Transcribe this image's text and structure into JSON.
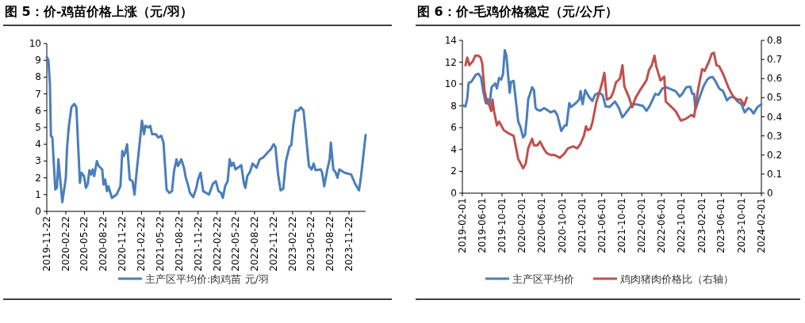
{
  "chart_data": [
    {
      "type": "line",
      "title": "图 5：价-鸡苗价格上涨（元/羽）",
      "legend": "bottom",
      "xlim": [
        "2019-11-22",
        "2024-02-10"
      ],
      "xticks": [
        "2019-11-22",
        "2020-02-22",
        "2020-05-22",
        "2020-08-22",
        "2020-11-22",
        "2021-02-22",
        "2021-05-22",
        "2021-08-22",
        "2021-11-22",
        "2022-02-22",
        "2022-05-22",
        "2022-08-22",
        "2022-11-22",
        "2023-02-22",
        "2023-05-22",
        "2023-08-22",
        "2023-11-22"
      ],
      "ylim": [
        0,
        10
      ],
      "yticks": [
        0,
        1,
        2,
        3,
        4,
        5,
        6,
        7,
        8,
        9,
        10
      ],
      "series": [
        {
          "name": "主产区平均价:肉鸡苗 元/羽",
          "color": "#4a7ebb",
          "x": [
            "2019-11-22",
            "2019-11-30",
            "2019-12-07",
            "2019-12-12",
            "2019-12-19",
            "2020-01-02",
            "2020-01-10",
            "2020-01-17",
            "2020-01-26",
            "2020-02-05",
            "2020-02-22",
            "2020-02-28",
            "2020-03-07",
            "2020-03-20",
            "2020-04-03",
            "2020-04-13",
            "2020-04-30",
            "2020-05-07",
            "2020-05-20",
            "2020-05-29",
            "2020-06-07",
            "2020-06-15",
            "2020-06-24",
            "2020-07-01",
            "2020-07-08",
            "2020-07-21",
            "2020-07-30",
            "2020-08-16",
            "2020-08-22",
            "2020-08-30",
            "2020-09-08",
            "2020-09-15",
            "2020-10-02",
            "2020-10-24",
            "2020-11-12",
            "2020-11-21",
            "2020-11-29",
            "2020-12-05",
            "2020-12-14",
            "2020-12-27",
            "2021-01-09",
            "2021-01-19",
            "2021-01-28",
            "2021-02-24",
            "2021-03-06",
            "2021-03-13",
            "2021-03-26",
            "2021-04-05",
            "2021-04-14",
            "2021-05-03",
            "2021-05-13",
            "2021-05-28",
            "2021-06-08",
            "2021-06-23",
            "2021-07-06",
            "2021-07-19",
            "2021-07-29",
            "2021-08-10",
            "2021-08-17",
            "2021-09-02",
            "2021-09-15",
            "2021-09-24",
            "2021-10-04",
            "2021-10-14",
            "2021-10-30",
            "2021-11-14",
            "2021-11-22",
            "2021-12-04",
            "2021-12-17",
            "2022-01-01",
            "2022-01-14",
            "2022-02-02",
            "2022-02-16",
            "2022-03-01",
            "2022-03-14",
            "2022-03-22",
            "2022-04-02",
            "2022-04-14",
            "2022-04-24",
            "2022-05-03",
            "2022-05-12",
            "2022-05-22",
            "2022-06-19",
            "2022-07-02",
            "2022-07-09",
            "2022-07-18",
            "2022-07-31",
            "2022-08-13",
            "2022-09-01",
            "2022-09-16",
            "2022-10-02",
            "2022-10-24",
            "2022-11-09",
            "2022-11-22",
            "2022-12-01",
            "2022-12-14",
            "2022-12-26",
            "2023-01-08",
            "2023-01-21",
            "2023-02-07",
            "2023-02-16",
            "2023-02-26",
            "2023-03-08",
            "2023-03-21",
            "2023-04-03",
            "2023-04-16",
            "2023-05-12",
            "2023-05-25",
            "2023-06-04",
            "2023-06-13",
            "2023-07-08",
            "2023-07-15",
            "2023-07-25",
            "2023-08-09",
            "2023-08-20",
            "2023-08-26",
            "2023-09-07",
            "2023-09-17",
            "2023-09-27",
            "2023-10-06",
            "2023-11-01",
            "2023-12-02",
            "2023-12-21",
            "2024-01-09",
            "2024-01-19",
            "2024-01-28",
            "2024-02-10"
          ],
          "values": [
            9.2,
            9.0,
            7.6,
            4.5,
            4.4,
            1.3,
            1.4,
            3.1,
            1.9,
            0.55,
            2.0,
            3.8,
            5.0,
            6.2,
            6.4,
            6.2,
            1.7,
            2.3,
            2.1,
            1.4,
            1.65,
            2.45,
            2.2,
            2.5,
            2.1,
            3.0,
            2.7,
            2.5,
            1.6,
            1.9,
            1.2,
            1.5,
            0.8,
            1.0,
            1.5,
            3.6,
            3.3,
            3.5,
            4.0,
            1.9,
            1.8,
            1.0,
            2.2,
            5.4,
            4.6,
            5.1,
            5.0,
            5.1,
            4.6,
            4.6,
            4.4,
            4.5,
            4.1,
            1.3,
            1.1,
            1.2,
            2.4,
            3.1,
            2.7,
            3.1,
            2.6,
            2.0,
            1.6,
            1.1,
            0.85,
            1.4,
            1.9,
            2.3,
            1.2,
            1.1,
            1.0,
            1.65,
            1.8,
            1.2,
            1.1,
            0.8,
            1.5,
            1.8,
            3.1,
            2.7,
            2.9,
            2.5,
            2.75,
            1.65,
            1.4,
            2.1,
            2.35,
            2.85,
            2.6,
            3.1,
            3.2,
            3.5,
            3.7,
            4.0,
            3.85,
            2.2,
            1.25,
            1.35,
            3.0,
            3.85,
            3.95,
            5.2,
            6.0,
            6.0,
            6.2,
            6.0,
            2.7,
            2.5,
            2.85,
            2.45,
            2.5,
            2.3,
            1.5,
            2.5,
            3.1,
            4.1,
            2.5,
            2.35,
            2.0,
            2.5,
            2.3,
            2.2,
            1.65,
            1.25,
            2.1,
            3.1,
            4.55
          ]
        }
      ]
    },
    {
      "type": "line",
      "title": "图 6：价-毛鸡价格稳定（元/公斤）",
      "legend": "bottom",
      "xlim": [
        "2019-02-01",
        "2024-02-01"
      ],
      "xticks": [
        "2019-02-01",
        "2019-06-01",
        "2019-10-01",
        "2020-02-01",
        "2020-06-01",
        "2020-10-01",
        "2021-02-01",
        "2021-06-01",
        "2021-10-01",
        "2022-02-01",
        "2022-06-01",
        "2022-10-01",
        "2023-02-01",
        "2023-06-01",
        "2023-10-01",
        "2024-02-01"
      ],
      "ylim": [
        0,
        14
      ],
      "yticks": [
        0,
        2,
        4,
        6,
        8,
        10,
        12,
        14
      ],
      "y2lim": [
        0,
        0.8
      ],
      "y2ticks": [
        0,
        0.1,
        0.2,
        0.3,
        0.4,
        0.5,
        0.6,
        0.7,
        0.8
      ],
      "series": [
        {
          "name": "主产区平均价",
          "color": "#4a7ebb",
          "x": [
            "2019-02-01",
            "2019-02-20",
            "2019-03-03",
            "2019-03-11",
            "2019-03-27",
            "2019-04-05",
            "2019-04-24",
            "2019-05-10",
            "2019-05-26",
            "2019-06-08",
            "2019-06-24",
            "2019-07-07",
            "2019-07-18",
            "2019-07-29",
            "2019-08-20",
            "2019-08-31",
            "2019-09-13",
            "2019-09-26",
            "2019-10-07",
            "2019-10-18",
            "2019-10-28",
            "2019-11-17",
            "2019-11-25",
            "2019-12-11",
            "2020-01-08",
            "2020-01-21",
            "2020-02-07",
            "2020-02-19",
            "2020-03-01",
            "2020-03-09",
            "2020-04-02",
            "2020-04-13",
            "2020-04-23",
            "2020-05-04",
            "2020-05-20",
            "2020-06-14",
            "2020-06-30",
            "2020-07-24",
            "2020-08-17",
            "2020-09-03",
            "2020-09-27",
            "2020-10-18",
            "2020-10-29",
            "2020-11-15",
            "2020-11-26",
            "2020-12-25",
            "2021-01-15",
            "2021-01-23",
            "2021-02-04",
            "2021-02-20",
            "2021-03-14",
            "2021-04-05",
            "2021-04-21",
            "2021-05-15",
            "2021-06-06",
            "2021-06-25",
            "2021-07-19",
            "2021-08-21",
            "2021-09-14",
            "2021-10-05",
            "2021-10-24",
            "2021-11-18",
            "2021-12-04",
            "2021-12-28",
            "2022-02-07",
            "2022-03-01",
            "2022-03-17",
            "2022-04-03",
            "2022-04-24",
            "2022-05-13",
            "2022-06-07",
            "2022-07-01",
            "2022-08-02",
            "2022-08-26",
            "2022-09-20",
            "2022-10-06",
            "2022-10-30",
            "2022-11-24",
            "2022-12-06",
            "2022-12-17",
            "2022-12-25",
            "2023-01-19",
            "2023-02-13",
            "2023-03-07",
            "2023-03-23",
            "2023-04-09",
            "2023-04-25",
            "2023-05-19",
            "2023-06-12",
            "2023-07-06",
            "2023-07-22",
            "2023-08-16",
            "2023-09-09",
            "2023-10-03",
            "2023-10-22",
            "2023-11-13",
            "2023-11-29",
            "2023-12-15",
            "2024-01-09",
            "2024-02-01"
          ],
          "values": [
            8.05,
            7.95,
            8.7,
            10.1,
            10.2,
            10.4,
            10.85,
            10.95,
            10.6,
            9.35,
            8.25,
            8.6,
            8.25,
            9.7,
            10.05,
            9.6,
            10.55,
            10.4,
            10.9,
            13.1,
            12.6,
            9.2,
            10.2,
            10.3,
            6.55,
            6.1,
            5.1,
            5.35,
            7.05,
            8.6,
            9.7,
            9.45,
            7.8,
            7.65,
            7.55,
            7.8,
            7.65,
            7.4,
            7.55,
            7.15,
            5.7,
            6.2,
            6.2,
            8.25,
            7.9,
            8.25,
            8.6,
            9.35,
            8.15,
            9.45,
            8.85,
            8.45,
            9.0,
            9.2,
            9.0,
            7.95,
            7.9,
            8.4,
            7.8,
            6.95,
            7.3,
            7.8,
            8.15,
            8.15,
            8.0,
            7.55,
            7.9,
            8.4,
            9.1,
            9.0,
            9.6,
            9.7,
            9.5,
            9.35,
            8.85,
            9.1,
            9.7,
            9.75,
            9.1,
            9.1,
            7.65,
            8.75,
            9.8,
            10.4,
            10.6,
            10.65,
            10.3,
            9.6,
            9.35,
            8.5,
            8.75,
            8.85,
            8.4,
            8.15,
            7.4,
            7.8,
            7.65,
            7.3,
            7.9,
            8.15
          ]
        },
        {
          "name": "鸡肉猪肉价格比（右轴）",
          "color": "#c0504d",
          "axis": "y2",
          "x": [
            "2019-02-20",
            "2019-03-03",
            "2019-03-16",
            "2019-04-05",
            "2019-04-21",
            "2019-05-10",
            "2019-05-23",
            "2019-06-02",
            "2019-06-16",
            "2019-07-03",
            "2019-07-14",
            "2019-07-27",
            "2019-08-04",
            "2019-08-13",
            "2019-08-31",
            "2019-09-13",
            "2019-10-12",
            "2019-11-17",
            "2019-12-11",
            "2020-01-08",
            "2020-02-07",
            "2020-02-23",
            "2020-03-09",
            "2020-04-02",
            "2020-04-13",
            "2020-05-04",
            "2020-05-20",
            "2020-06-14",
            "2020-06-30",
            "2020-07-24",
            "2020-08-17",
            "2020-09-18",
            "2020-10-13",
            "2020-11-07",
            "2020-12-09",
            "2021-01-03",
            "2021-01-23",
            "2021-02-12",
            "2021-02-25",
            "2021-03-08",
            "2021-03-23",
            "2021-04-05",
            "2021-04-30",
            "2021-05-15",
            "2021-06-01",
            "2021-06-17",
            "2021-07-02",
            "2021-07-26",
            "2021-08-11",
            "2021-08-27",
            "2021-09-20",
            "2021-10-06",
            "2021-10-17",
            "2021-11-15",
            "2021-12-04",
            "2021-12-25",
            "2022-01-18",
            "2022-03-01",
            "2022-03-17",
            "2022-04-03",
            "2022-04-19",
            "2022-04-30",
            "2022-05-26",
            "2022-06-18",
            "2022-06-27",
            "2022-08-02",
            "2022-08-26",
            "2022-09-27",
            "2022-10-30",
            "2022-12-01",
            "2022-12-17",
            "2023-01-10",
            "2023-02-04",
            "2023-02-20",
            "2023-03-16",
            "2023-04-04",
            "2023-04-17",
            "2023-05-03",
            "2023-05-19",
            "2023-06-12",
            "2023-07-14",
            "2023-08-16",
            "2023-09-09",
            "2023-09-28",
            "2023-10-19",
            "2023-11-04"
          ],
          "values": [
            0.67,
            0.71,
            0.67,
            0.69,
            0.72,
            0.72,
            0.71,
            0.68,
            0.54,
            0.47,
            0.465,
            0.43,
            0.49,
            0.43,
            0.355,
            0.375,
            0.33,
            0.31,
            0.3,
            0.18,
            0.13,
            0.155,
            0.235,
            0.285,
            0.25,
            0.25,
            0.27,
            0.23,
            0.21,
            0.2,
            0.2,
            0.185,
            0.205,
            0.235,
            0.245,
            0.235,
            0.26,
            0.3,
            0.35,
            0.33,
            0.335,
            0.37,
            0.48,
            0.52,
            0.57,
            0.63,
            0.49,
            0.5,
            0.53,
            0.58,
            0.6,
            0.67,
            0.56,
            0.5,
            0.45,
            0.5,
            0.535,
            0.59,
            0.645,
            0.67,
            0.72,
            0.665,
            0.59,
            0.61,
            0.48,
            0.45,
            0.43,
            0.38,
            0.39,
            0.41,
            0.4,
            0.54,
            0.65,
            0.64,
            0.685,
            0.73,
            0.735,
            0.67,
            0.665,
            0.625,
            0.555,
            0.5,
            0.49,
            0.49,
            0.46,
            0.5
          ]
        }
      ]
    }
  ]
}
